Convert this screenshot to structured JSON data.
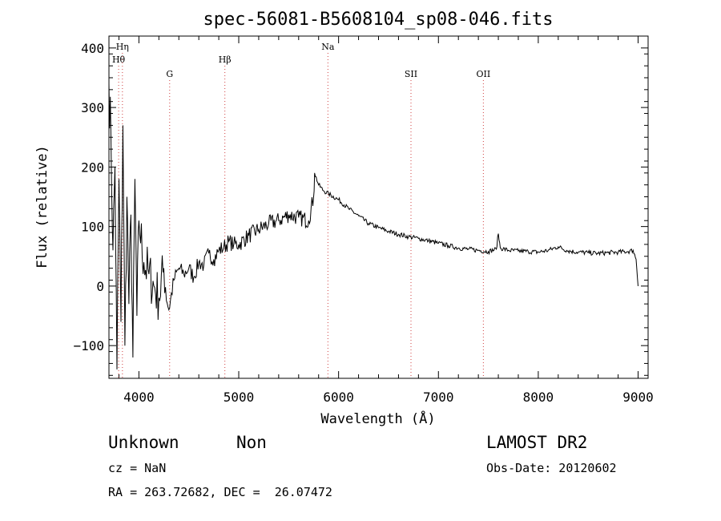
{
  "chart_data": {
    "type": "line",
    "title": "spec-56081-B5608104_sp08-046.fits",
    "xlabel": "Wavelength (Å)",
    "ylabel": "Flux (relative)",
    "xlim": [
      3700,
      9100
    ],
    "ylim": [
      -155,
      420
    ],
    "x_ticks": [
      4000,
      5000,
      6000,
      7000,
      8000,
      9000
    ],
    "y_ticks": [
      -100,
      0,
      100,
      200,
      300,
      400
    ],
    "grid": false,
    "series": [
      {
        "x": [
          3700,
          3720,
          3740,
          3760,
          3780,
          3800,
          3820,
          3840,
          3860,
          3880,
          3900,
          3920,
          3940,
          3960,
          3980,
          4000,
          4050,
          4100,
          4150,
          4200,
          4250,
          4300,
          4350,
          4400,
          4450,
          4500,
          4550,
          4600,
          4650,
          4700,
          4750,
          4800,
          4850,
          4900,
          4950,
          5000,
          5100,
          5200,
          5300,
          5400,
          5500,
          5600,
          5700,
          5750,
          5760,
          5800,
          5850,
          5900,
          6000,
          6100,
          6200,
          6300,
          6400,
          6500,
          6600,
          6700,
          6800,
          6900,
          7000,
          7100,
          7200,
          7300,
          7400,
          7500,
          7580,
          7600,
          7620,
          7700,
          7800,
          7900,
          8000,
          8100,
          8200,
          8300,
          8400,
          8500,
          8600,
          8700,
          8800,
          8900,
          8950,
          8980,
          9000
        ],
        "y": [
          340,
          250,
          60,
          200,
          -140,
          180,
          -60,
          270,
          -100,
          150,
          -30,
          120,
          -120,
          180,
          -50,
          110,
          40,
          20,
          0,
          -20,
          30,
          -40,
          10,
          30,
          20,
          30,
          15,
          40,
          35,
          55,
          45,
          60,
          65,
          75,
          70,
          70,
          85,
          95,
          105,
          110,
          120,
          115,
          110,
          150,
          190,
          170,
          160,
          155,
          145,
          130,
          118,
          105,
          98,
          92,
          87,
          83,
          80,
          76,
          72,
          68,
          64,
          62,
          60,
          58,
          62,
          88,
          64,
          60,
          59,
          58,
          57,
          60,
          66,
          59,
          57,
          56,
          55,
          56,
          57,
          58,
          60,
          45,
          0
        ]
      }
    ],
    "annotations": [
      {
        "label": "Hη",
        "x": 3835,
        "row": 0
      },
      {
        "label": "Hθ",
        "x": 3797,
        "row": 1
      },
      {
        "label": "G",
        "x": 4308,
        "row": 2
      },
      {
        "label": "Hβ",
        "x": 4861,
        "row": 1
      },
      {
        "label": "Na",
        "x": 5893,
        "row": 0
      },
      {
        "label": "SII",
        "x": 6725,
        "row": 2
      },
      {
        "label": "OII",
        "x": 7450,
        "row": 2
      }
    ]
  },
  "footer": {
    "object_class": "Unknown",
    "subclass": "Non",
    "survey": "LAMOST DR2",
    "redshift": "cz = NaN",
    "obs_date": "Obs-Date: 20120602",
    "coords": "RA = 263.72682, DEC =  26.07472"
  }
}
